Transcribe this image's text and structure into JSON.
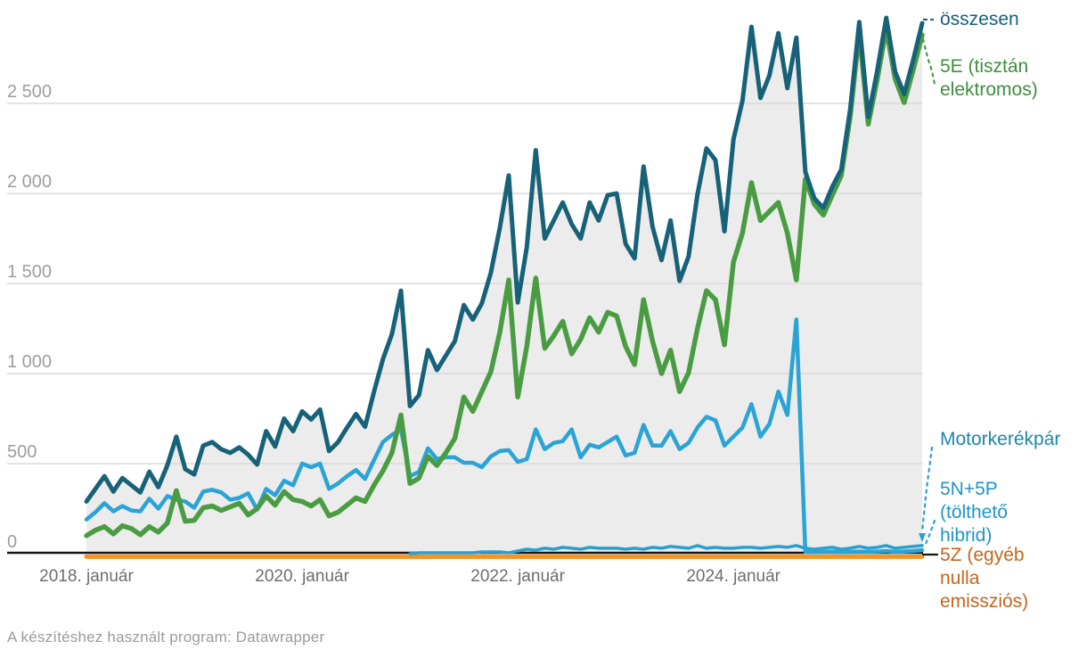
{
  "page": {
    "footer_note": "A készítéshez használt program: Datawrapper"
  },
  "chart_data": {
    "type": "line",
    "title": "",
    "x_unit": "month",
    "x_start": "2018-01",
    "x_end": "2025-10",
    "months": 94,
    "ylim": [
      0,
      3000
    ],
    "grid": "horizontal",
    "legend_position": "right-direct-labels",
    "area_fill_series": "osszesen",
    "area_fill_color": "#ececec",
    "grid_color": "#dadada",
    "axis_color": "#151515",
    "y_axis": {
      "ticks": [
        {
          "value": 0,
          "label": "0"
        },
        {
          "value": 500,
          "label": "500"
        },
        {
          "value": 1000,
          "label": "1 000"
        },
        {
          "value": 1500,
          "label": "1 500"
        },
        {
          "value": 2000,
          "label": "2 000"
        },
        {
          "value": 2500,
          "label": "2 500"
        }
      ],
      "label_color": "#9d9d9d"
    },
    "x_axis": {
      "ticks": [
        {
          "month_index": 0,
          "label": "2018. január"
        },
        {
          "month_index": 24,
          "label": "2020. január"
        },
        {
          "month_index": 48,
          "label": "2022. január"
        },
        {
          "month_index": 72,
          "label": "2024. január"
        }
      ],
      "label_color": "#6e6e6e"
    },
    "series": [
      {
        "id": "osszesen",
        "label": "összesen",
        "label_lines": [
          "összesen"
        ],
        "color": "#176279",
        "label_color": "#15607a",
        "values": [
          290,
          360,
          430,
          345,
          420,
          380,
          340,
          455,
          370,
          490,
          650,
          470,
          440,
          600,
          620,
          580,
          560,
          590,
          550,
          495,
          680,
          595,
          750,
          680,
          790,
          745,
          800,
          570,
          620,
          700,
          775,
          705,
          900,
          1080,
          1220,
          1460,
          820,
          880,
          1130,
          1020,
          1100,
          1180,
          1380,
          1300,
          1390,
          1560,
          1810,
          2100,
          1395,
          1700,
          2240,
          1750,
          1850,
          1950,
          1830,
          1750,
          1950,
          1850,
          1990,
          2000,
          1720,
          1640,
          2150,
          1815,
          1630,
          1850,
          1515,
          1650,
          1995,
          2250,
          2185,
          1790,
          2300,
          2515,
          2925,
          2530,
          2655,
          2890,
          2585,
          2865,
          2120,
          1973,
          1920,
          2037,
          2133,
          2470,
          2952,
          2425,
          2682,
          2975,
          2675,
          2552,
          2740,
          2945
        ]
      },
      {
        "id": "e5",
        "label": "5E (tisztán elektromos)",
        "label_lines": [
          "5E (tisztán",
          "elektromos)"
        ],
        "color": "#4a9c42",
        "label_color": "#3e8e3e",
        "values": [
          100,
          130,
          150,
          110,
          155,
          140,
          105,
          150,
          120,
          170,
          350,
          180,
          185,
          255,
          265,
          240,
          260,
          280,
          215,
          250,
          320,
          270,
          345,
          300,
          290,
          265,
          300,
          210,
          230,
          270,
          310,
          290,
          380,
          460,
          560,
          770,
          390,
          420,
          540,
          490,
          560,
          640,
          870,
          790,
          900,
          1010,
          1230,
          1520,
          870,
          1150,
          1530,
          1140,
          1210,
          1290,
          1110,
          1190,
          1310,
          1230,
          1340,
          1320,
          1150,
          1050,
          1410,
          1180,
          1000,
          1130,
          900,
          1005,
          1250,
          1460,
          1410,
          1160,
          1620,
          1780,
          2060,
          1850,
          1900,
          1950,
          1780,
          1520,
          2080,
          1940,
          1880,
          1990,
          2100,
          2430,
          2900,
          2385,
          2635,
          2915,
          2635,
          2505,
          2685,
          2880
        ]
      },
      {
        "id": "moto",
        "label": "Motorkerékpár",
        "label_lines": [
          "Motorkerékpár"
        ],
        "color": "#2a9fd0",
        "label_color": "#1b86b0",
        "values": [
          null,
          null,
          null,
          null,
          null,
          null,
          null,
          null,
          null,
          null,
          null,
          null,
          null,
          null,
          null,
          null,
          null,
          null,
          null,
          null,
          null,
          null,
          null,
          null,
          null,
          null,
          null,
          null,
          null,
          null,
          null,
          null,
          null,
          null,
          null,
          null,
          0,
          5,
          5,
          5,
          5,
          5,
          5,
          5,
          10,
          10,
          10,
          5,
          15,
          25,
          20,
          30,
          25,
          35,
          30,
          25,
          35,
          30,
          30,
          30,
          25,
          30,
          25,
          35,
          30,
          40,
          35,
          30,
          45,
          30,
          35,
          30,
          30,
          35,
          35,
          30,
          35,
          40,
          35,
          45,
          30,
          25,
          30,
          35,
          25,
          30,
          40,
          30,
          35,
          45,
          30,
          35,
          40,
          45
        ]
      },
      {
        "id": "n5p5",
        "label": "5N+5P (tölthető hibrid)",
        "label_lines": [
          "5N+5P",
          "(tölthető",
          "hibrid)"
        ],
        "color": "#2aa3d6",
        "label_color": "#2095c7",
        "values": [
          190,
          230,
          280,
          235,
          265,
          240,
          235,
          305,
          250,
          320,
          300,
          290,
          255,
          345,
          355,
          340,
          300,
          310,
          335,
          245,
          360,
          325,
          405,
          380,
          500,
          480,
          500,
          360,
          390,
          430,
          465,
          415,
          520,
          620,
          660,
          690,
          430,
          455,
          585,
          525,
          535,
          535,
          505,
          505,
          480,
          540,
          570,
          575,
          510,
          525,
          690,
          580,
          615,
          625,
          690,
          535,
          605,
          590,
          620,
          650,
          545,
          560,
          715,
          600,
          600,
          680,
          580,
          615,
          700,
          760,
          740,
          600,
          650,
          700,
          830,
          650,
          720,
          900,
          770,
          1300,
          10,
          8,
          10,
          12,
          8,
          10,
          12,
          10,
          12,
          15,
          10,
          12,
          15,
          20
        ]
      },
      {
        "id": "z5",
        "label": "5Z (egyéb nulla emissziós)",
        "label_lines": [
          "5Z (egyéb",
          "nulla",
          "emissziós)"
        ],
        "color": "#f6941f",
        "label_color": "#c4661b",
        "values": [
          0,
          0,
          0,
          0,
          0,
          0,
          0,
          0,
          0,
          0,
          0,
          0,
          0,
          0,
          0,
          0,
          0,
          0,
          0,
          0,
          0,
          0,
          0,
          0,
          0,
          0,
          0,
          0,
          0,
          0,
          0,
          0,
          0,
          0,
          0,
          0,
          0,
          0,
          0,
          0,
          0,
          0,
          0,
          0,
          0,
          0,
          0,
          0,
          0,
          0,
          0,
          0,
          0,
          0,
          0,
          0,
          0,
          0,
          0,
          0,
          0,
          0,
          0,
          0,
          0,
          0,
          0,
          0,
          0,
          0,
          0,
          0,
          0,
          0,
          0,
          0,
          0,
          0,
          0,
          0,
          0,
          0,
          0,
          0,
          0,
          0,
          0,
          0,
          0,
          0,
          0,
          0,
          0,
          0
        ]
      }
    ]
  }
}
